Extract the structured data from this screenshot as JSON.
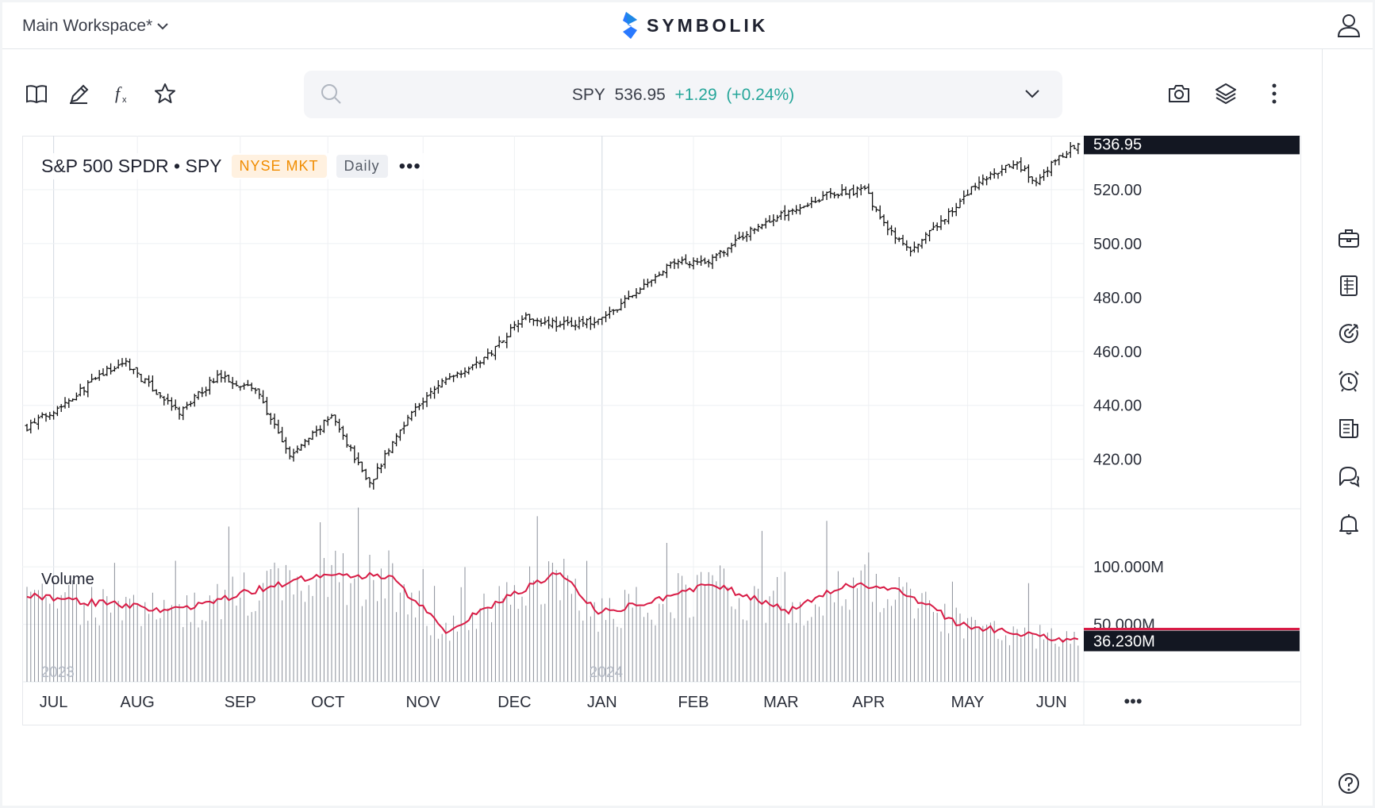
{
  "header": {
    "workspace_label": "Main Workspace*",
    "brand": "SYMBOLIK",
    "brand_colors": [
      "#1e88e5",
      "#2979ff"
    ]
  },
  "toolbar": {
    "icons": [
      "book-icon",
      "pencil-icon",
      "function-icon",
      "star-icon"
    ],
    "right_icons": [
      "camera-icon",
      "layers-icon",
      "more-vertical-icon"
    ]
  },
  "quote": {
    "symbol": "SPY",
    "price": "536.95",
    "change": "+1.29",
    "change_pct": "(+0.24%)",
    "change_color": "#26a69a"
  },
  "legend": {
    "title": "S&P 500 SPDR • SPY",
    "exchange": "NYSE MKT",
    "interval": "Daily",
    "more": "•••"
  },
  "volume_label": "Volume",
  "sidebar": {
    "icons": [
      "briefcase-icon",
      "table-icon",
      "target-icon",
      "alarm-icon",
      "news-icon",
      "chat-icon",
      "bell-icon",
      "help-icon"
    ]
  },
  "chart_data": {
    "type": "ohlc",
    "price_axis": {
      "ticks": [
        "520.00",
        "500.00",
        "480.00",
        "460.00",
        "440.00",
        "420.00"
      ],
      "tick_values": [
        520,
        500,
        480,
        460,
        440,
        420
      ],
      "ylim": [
        404,
        540
      ],
      "last_price_label": "536.95",
      "last_price": 536.95
    },
    "volume_axis": {
      "ticks": [
        "100.000M",
        "50.000M"
      ],
      "tick_values": [
        100,
        50
      ],
      "ylim": [
        0,
        145
      ],
      "last_volume_label": "36.230M",
      "last_volume": 36.23,
      "ma_color": "#d81b45"
    },
    "x_axis": {
      "months": [
        "JUL",
        "AUG",
        "SEP",
        "OCT",
        "NOV",
        "DEC",
        "JAN",
        "FEB",
        "MAR",
        "APR",
        "MAY",
        "JUN"
      ],
      "year_labels": [
        "2023",
        "2024"
      ],
      "bottom_more": "•••"
    },
    "series": [
      {
        "name": "SPY",
        "close_anchors": [
          [
            0,
            432
          ],
          [
            10,
            441
          ],
          [
            20,
            452
          ],
          [
            26,
            456
          ],
          [
            30,
            450
          ],
          [
            40,
            437
          ],
          [
            50,
            451
          ],
          [
            60,
            446
          ],
          [
            69,
            421
          ],
          [
            80,
            436
          ],
          [
            90,
            411
          ],
          [
            100,
            436
          ],
          [
            110,
            450
          ],
          [
            120,
            457
          ],
          [
            130,
            473
          ],
          [
            140,
            470
          ],
          [
            150,
            471
          ],
          [
            160,
            482
          ],
          [
            170,
            493
          ],
          [
            180,
            494
          ],
          [
            190,
            505
          ],
          [
            200,
            512
          ],
          [
            210,
            518
          ],
          [
            220,
            520
          ],
          [
            226,
            505
          ],
          [
            232,
            497
          ],
          [
            240,
            508
          ],
          [
            250,
            523
          ],
          [
            260,
            530
          ],
          [
            265,
            522
          ],
          [
            270,
            531
          ],
          [
            276,
            536.95
          ]
        ],
        "volume_anchors": [
          [
            0,
            75
          ],
          [
            20,
            68
          ],
          [
            40,
            62
          ],
          [
            60,
            80
          ],
          [
            75,
            92
          ],
          [
            95,
            92
          ],
          [
            110,
            45
          ],
          [
            130,
            80
          ],
          [
            140,
            95
          ],
          [
            150,
            60
          ],
          [
            165,
            70
          ],
          [
            180,
            85
          ],
          [
            200,
            62
          ],
          [
            215,
            85
          ],
          [
            230,
            78
          ],
          [
            245,
            50
          ],
          [
            260,
            42
          ],
          [
            276,
            36.23
          ]
        ]
      }
    ]
  }
}
